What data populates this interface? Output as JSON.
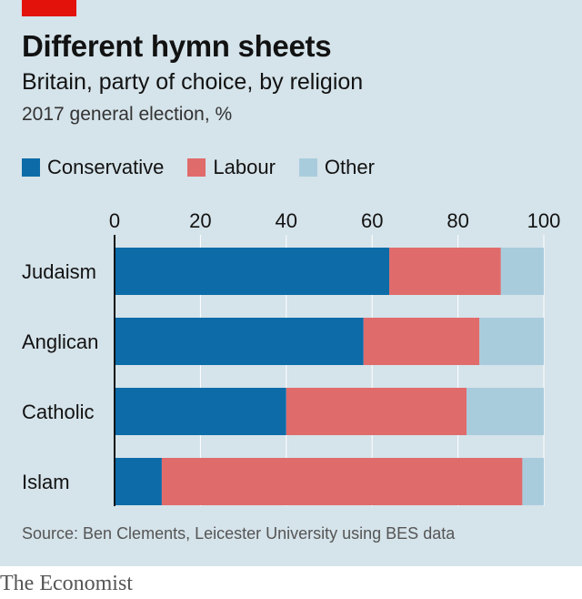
{
  "header": {
    "title": "Different hymn sheets",
    "subtitle": "Britain, party of choice, by religion",
    "unit_note": "2017 general election, %"
  },
  "footer": {
    "source": "Source: Ben Clements, Leicester University using BES data",
    "brand": "The Economist"
  },
  "colors": {
    "conservative": "#0d6ca8",
    "labour": "#e06b6b",
    "other": "#a9ccdd",
    "grid": "#ffffff",
    "axis": "#121212",
    "panel": "#d5e3ea",
    "red_tab": "#e3120b"
  },
  "chart_data": {
    "type": "bar",
    "orientation": "horizontal",
    "stacked": true,
    "categories": [
      "Judaism",
      "Anglican",
      "Catholic",
      "Islam"
    ],
    "series": [
      {
        "name": "Conservative",
        "values": [
          64,
          58,
          40,
          11
        ]
      },
      {
        "name": "Labour",
        "values": [
          26,
          27,
          42,
          84
        ]
      },
      {
        "name": "Other",
        "values": [
          10,
          15,
          18,
          5
        ]
      }
    ],
    "xlim": [
      0,
      100
    ],
    "xticks": [
      0,
      20,
      40,
      60,
      80,
      100
    ],
    "xlabel": "",
    "ylabel": "",
    "grid": true,
    "legend": "top-left"
  }
}
